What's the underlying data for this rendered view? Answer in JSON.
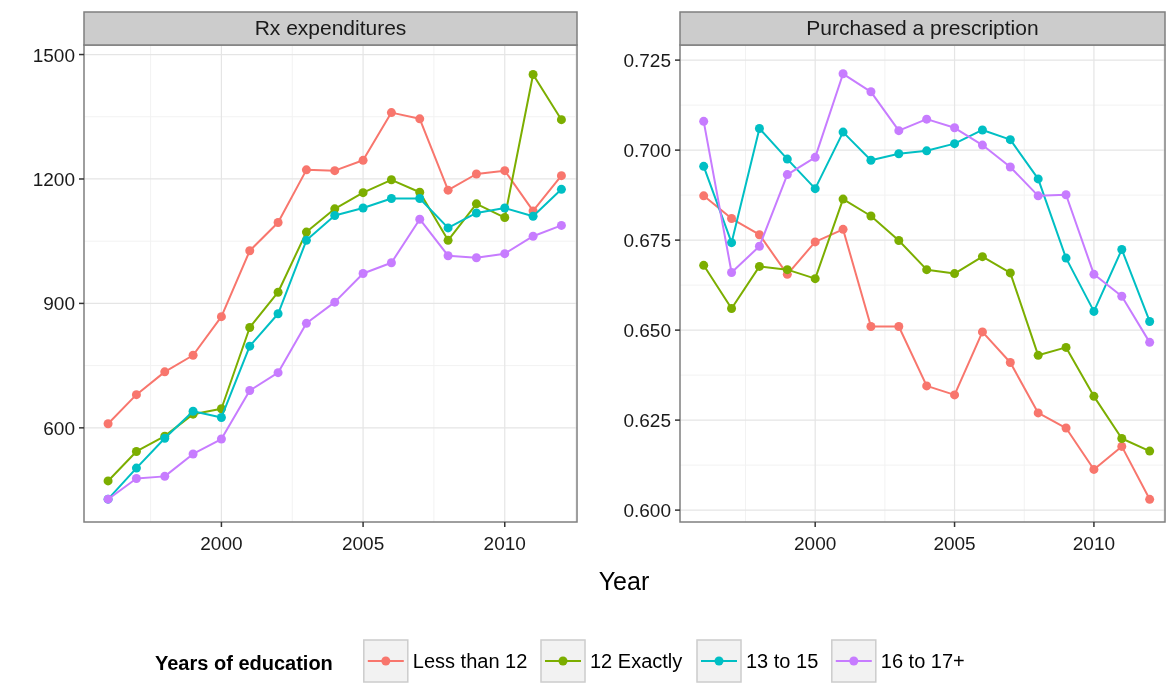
{
  "chart_data": [
    {
      "type": "line",
      "title": "Rx expenditures",
      "xlabel": "Year",
      "legend_title": "Years of education",
      "legend": "bottom",
      "grid": true,
      "marker": "circle",
      "x": [
        1996,
        1997,
        1998,
        1999,
        2000,
        2001,
        2002,
        2003,
        2004,
        2005,
        2006,
        2007,
        2008,
        2009,
        2010,
        2011,
        2012
      ],
      "xlim": [
        1995.15,
        2012.55
      ],
      "xticks": [
        2000,
        2005,
        2010
      ],
      "ylim": [
        373,
        1523
      ],
      "yticks": [
        600,
        900,
        1200,
        1500
      ],
      "series": [
        {
          "name": "Less than 12",
          "color": "#f8766d",
          "values": [
            610,
            680,
            735,
            775,
            868,
            1027,
            1095,
            1222,
            1220,
            1245,
            1360,
            1345,
            1173,
            1212,
            1220,
            1123,
            1208
          ]
        },
        {
          "name": "12 Exactly",
          "color": "#7cae00",
          "values": [
            472,
            543,
            580,
            633,
            646,
            842,
            927,
            1072,
            1128,
            1167,
            1198,
            1168,
            1052,
            1140,
            1107,
            1452,
            1343
          ]
        },
        {
          "name": "13 to 15",
          "color": "#00bfc4",
          "values": [
            428,
            503,
            575,
            640,
            625,
            797,
            875,
            1052,
            1112,
            1130,
            1153,
            1153,
            1082,
            1118,
            1130,
            1110,
            1175
          ]
        },
        {
          "name": "16 to 17+",
          "color": "#c77cff",
          "values": [
            428,
            478,
            483,
            537,
            573,
            690,
            733,
            852,
            903,
            972,
            998,
            1103,
            1015,
            1010,
            1020,
            1062,
            1088
          ]
        }
      ]
    },
    {
      "type": "line",
      "title": "Purchased a prescription",
      "legend": "bottom",
      "grid": true,
      "marker": "circle",
      "x": [
        1996,
        1997,
        1998,
        1999,
        2000,
        2001,
        2002,
        2003,
        2004,
        2005,
        2006,
        2007,
        2008,
        2009,
        2010,
        2011,
        2012
      ],
      "xlim": [
        1995.15,
        2012.55
      ],
      "xticks": [
        2000,
        2005,
        2010
      ],
      "ylim": [
        0.5967,
        0.7292
      ],
      "yticks": [
        {
          "value": 0.6,
          "label": "0.600"
        },
        {
          "value": 0.625,
          "label": "0.625"
        },
        {
          "value": 0.65,
          "label": "0.650"
        },
        {
          "value": 0.675,
          "label": "0.675"
        },
        {
          "value": 0.7,
          "label": "0.700"
        },
        {
          "value": 0.725,
          "label": "0.725"
        }
      ],
      "series": [
        {
          "name": "Less than 12",
          "color": "#f8766d",
          "values": [
            0.6873,
            0.681,
            0.6765,
            0.6655,
            0.6745,
            0.678,
            0.651,
            0.651,
            0.6345,
            0.632,
            0.6495,
            0.641,
            0.627,
            0.6228,
            0.6113,
            0.6177,
            0.603
          ]
        },
        {
          "name": "12 Exactly",
          "color": "#7cae00",
          "values": [
            0.668,
            0.656,
            0.6677,
            0.6668,
            0.6643,
            0.6864,
            0.6817,
            0.6749,
            0.6668,
            0.6657,
            0.6704,
            0.6659,
            0.643,
            0.6452,
            0.6316,
            0.6199,
            0.6164
          ]
        },
        {
          "name": "13 to 15",
          "color": "#00bfc4",
          "values": [
            0.6955,
            0.6743,
            0.706,
            0.6975,
            0.6893,
            0.705,
            0.6972,
            0.699,
            0.6998,
            0.7018,
            0.7056,
            0.7029,
            0.692,
            0.67,
            0.6552,
            0.6724,
            0.6524
          ]
        },
        {
          "name": "16 to 17+",
          "color": "#c77cff",
          "values": [
            0.708,
            0.666,
            0.6733,
            0.6932,
            0.698,
            0.7212,
            0.7162,
            0.7054,
            0.7086,
            0.7062,
            0.7014,
            0.6953,
            0.6873,
            0.6876,
            0.6655,
            0.6594,
            0.6466
          ]
        }
      ]
    }
  ]
}
